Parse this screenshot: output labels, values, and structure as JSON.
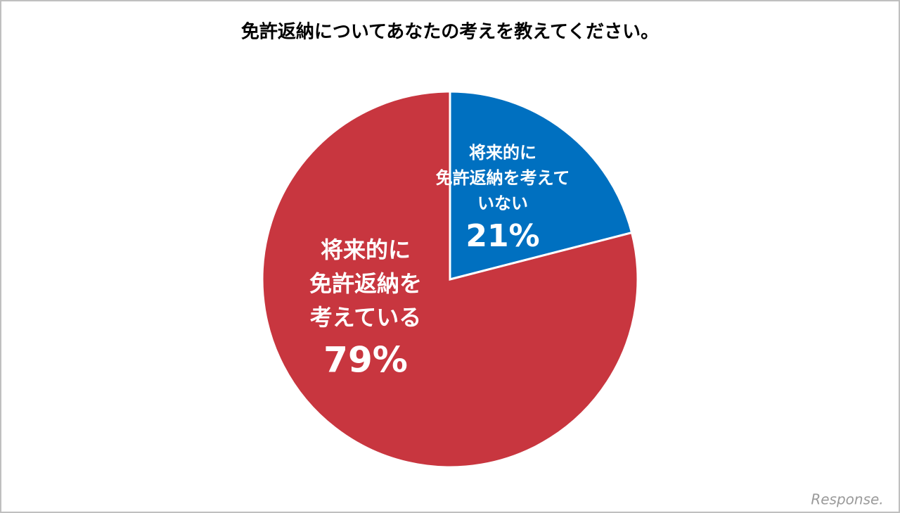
{
  "chart_data": {
    "type": "pie",
    "title": "免許返納についてあなたの考えを教えてください。",
    "categories": [
      [
        "将来的に",
        "免許返納を考えて",
        "いない"
      ],
      [
        "将来的に",
        "免許返納を",
        "考えている"
      ]
    ],
    "values": [
      21,
      79
    ],
    "value_labels": [
      "21%",
      "79%"
    ],
    "colors": [
      "#0070c0",
      "#c8363f"
    ],
    "watermark": "Response."
  }
}
